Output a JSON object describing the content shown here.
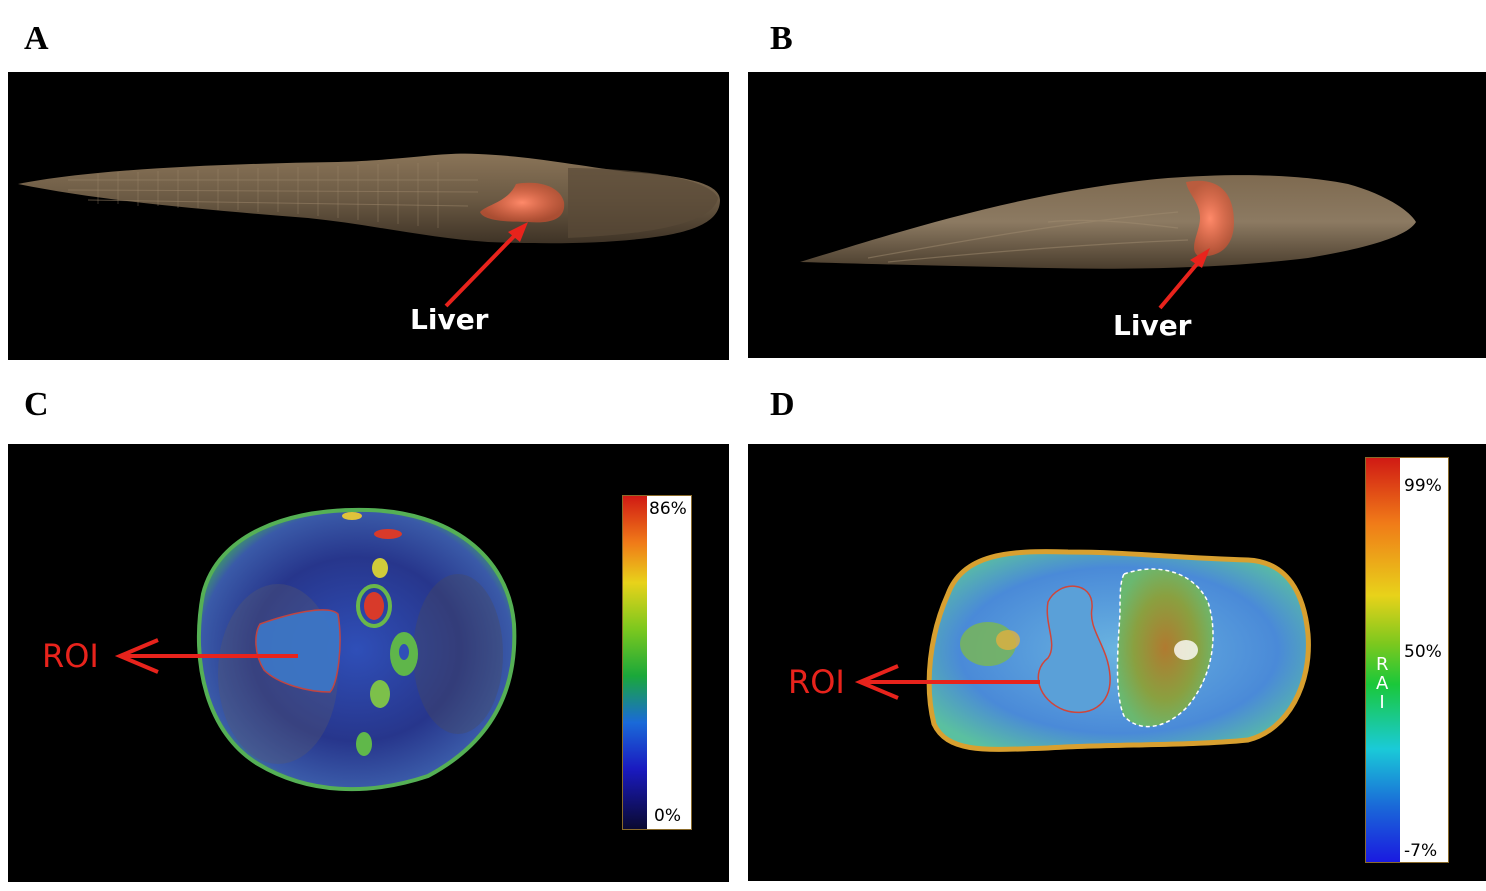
{
  "panels": {
    "a": {
      "letter": "A",
      "callout": "Liver"
    },
    "b": {
      "letter": "B",
      "callout": "Liver"
    },
    "c": {
      "letter": "C",
      "callout": "ROI",
      "scale_max": "86%",
      "scale_min": "0%"
    },
    "d": {
      "letter": "D",
      "callout": "ROI",
      "scale_max": "99%",
      "scale_mid": "50%",
      "scale_min": "-7%",
      "scale_label": "RAI"
    }
  },
  "colors": {
    "arrow": "#e8231c",
    "liver_highlight": "#f06a4a",
    "fish_body": "#6b5a44",
    "background": "#000000"
  },
  "icons": [
    "arrow-icon",
    "colorbar-scale"
  ]
}
